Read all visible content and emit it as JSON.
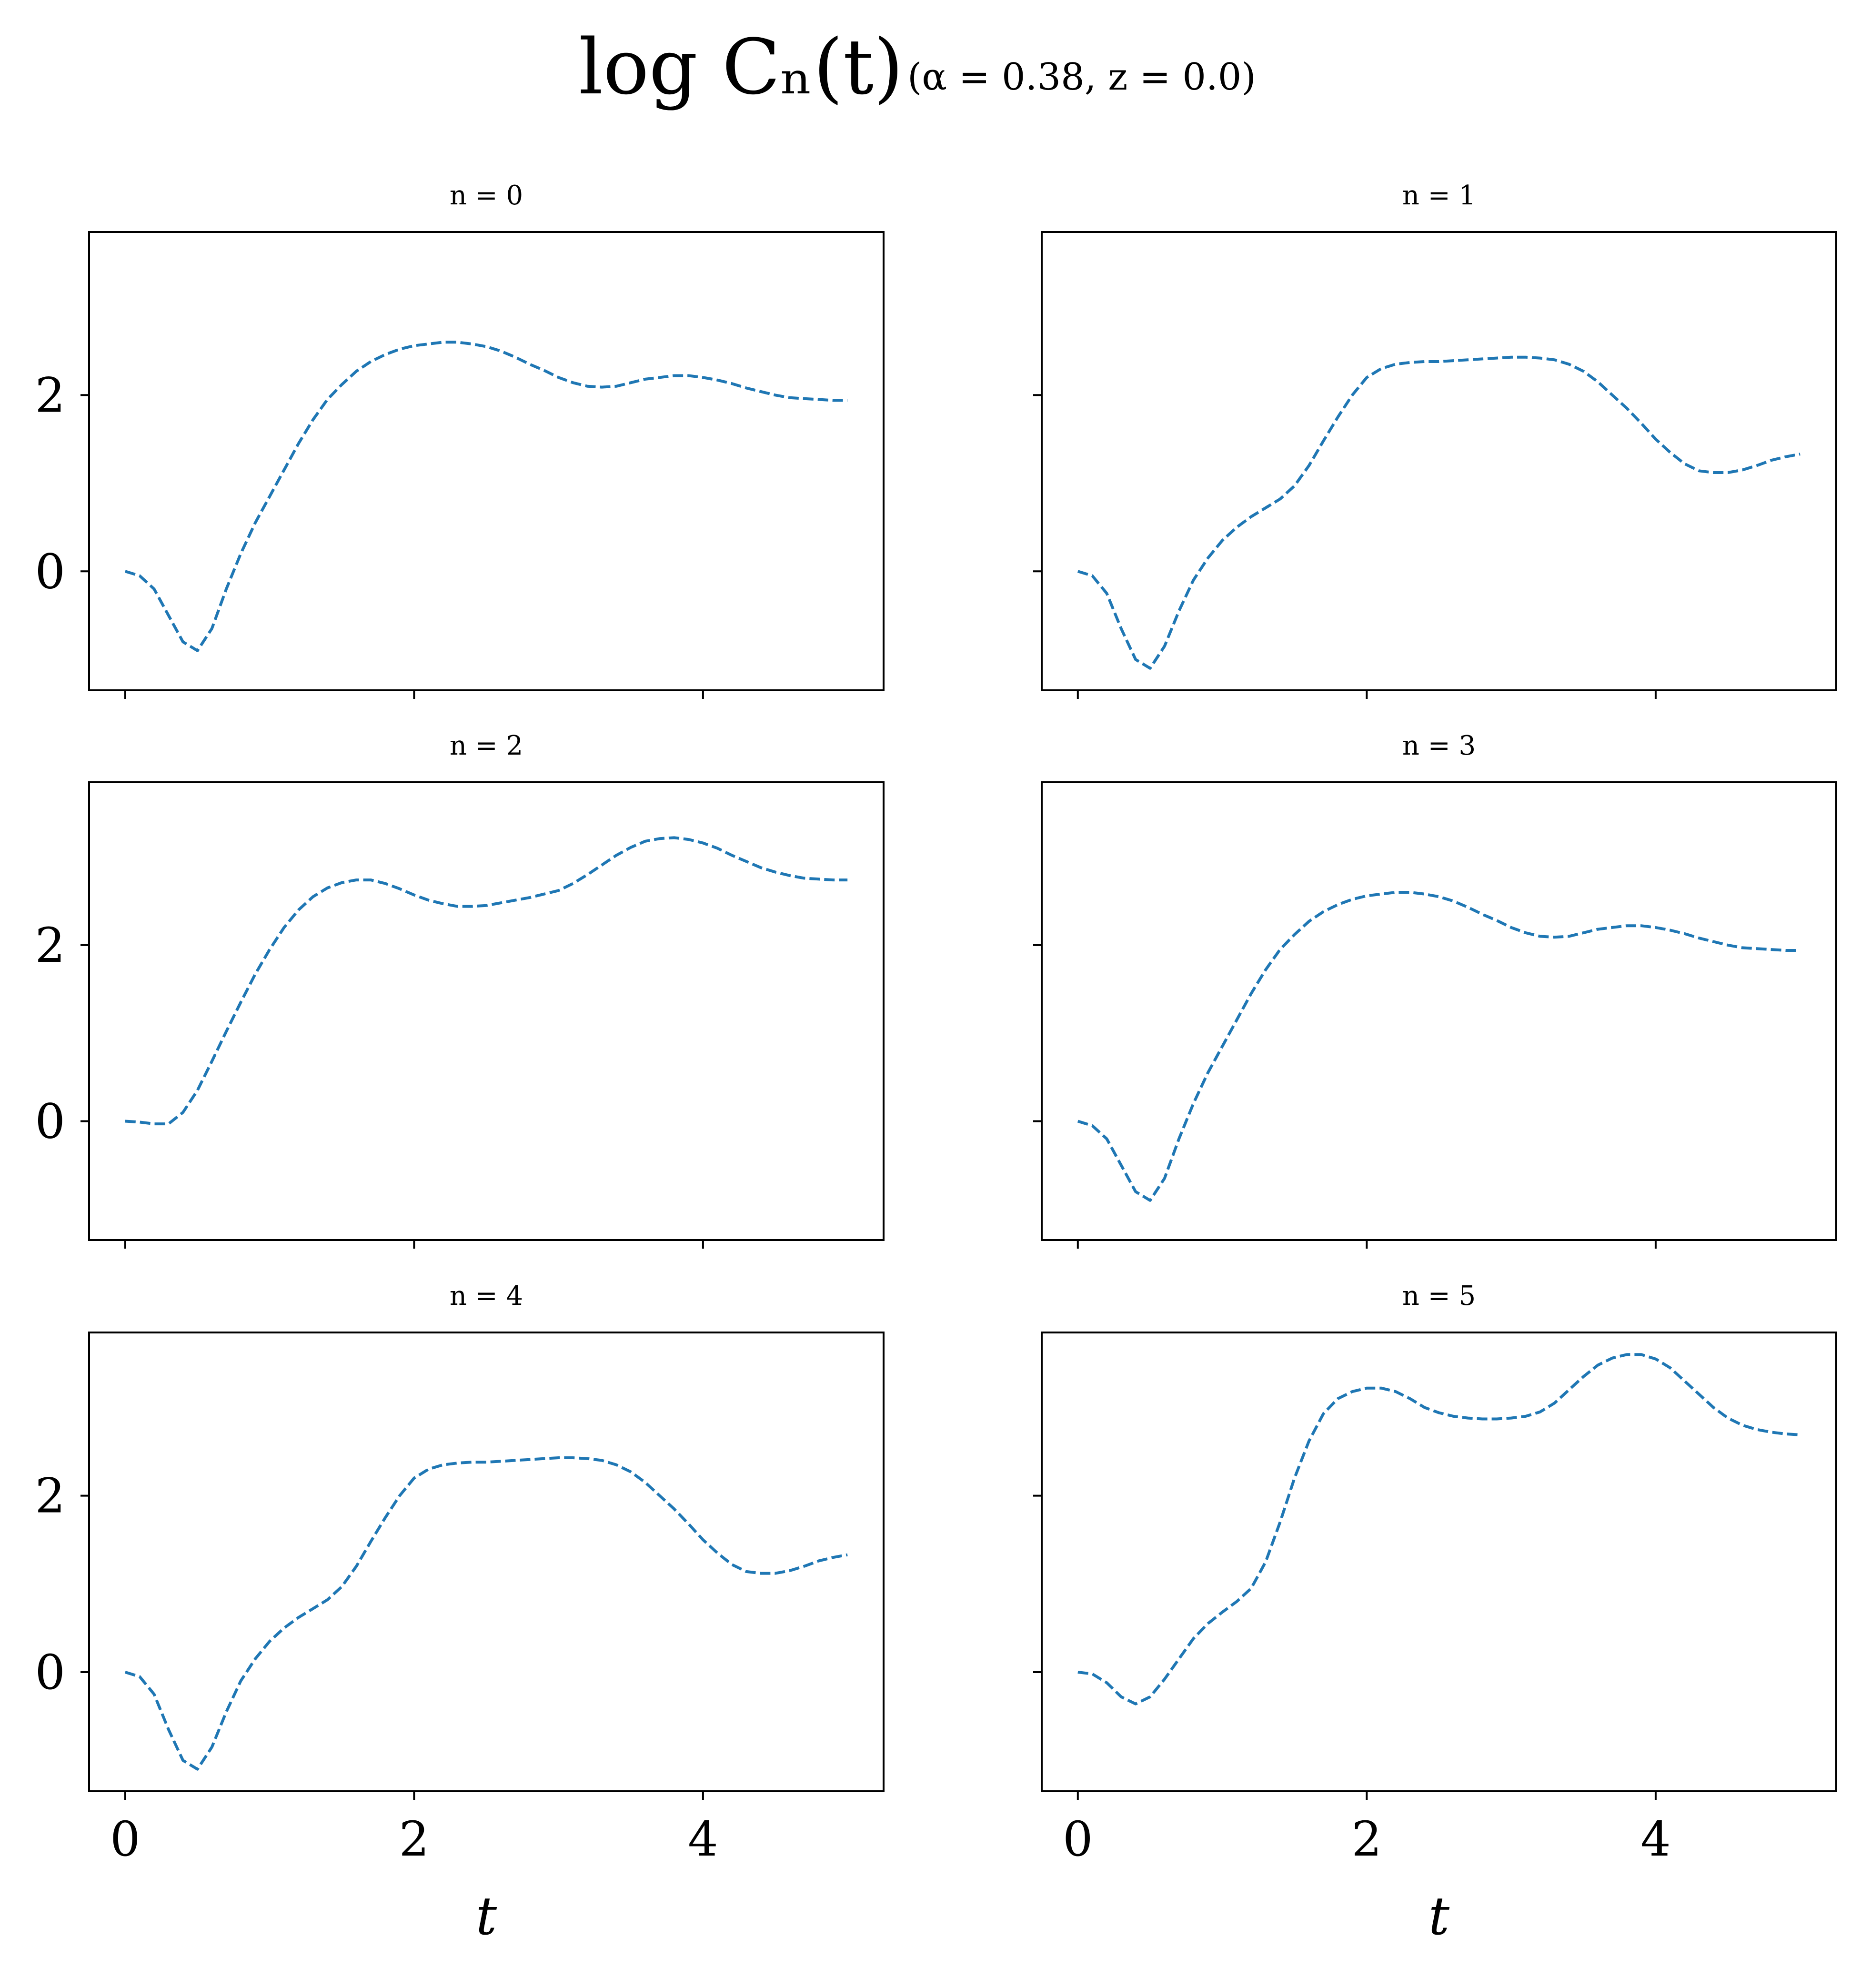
{
  "figure": {
    "suptitle_main": "log Cₙ(t)",
    "suptitle_params": "(α = 0.38, z = 0.0)"
  },
  "chart_data": [
    {
      "type": "line",
      "title": "n = 0",
      "xlabel": "",
      "ylabel": "",
      "xlim": [
        -0.25,
        5.25
      ],
      "ylim": [
        -1.35,
        3.85
      ],
      "xticks": [
        0,
        2,
        4
      ],
      "yticks": [
        0,
        2
      ],
      "line_style": "dashed",
      "line_color": "#1f77b4",
      "series": [
        {
          "x": [
            0,
            0.1,
            0.2,
            0.3,
            0.4,
            0.5,
            0.6,
            0.7,
            0.8,
            0.9,
            1.0,
            1.1,
            1.2,
            1.3,
            1.4,
            1.5,
            1.6,
            1.7,
            1.8,
            1.9,
            2.0,
            2.1,
            2.2,
            2.3,
            2.4,
            2.5,
            2.6,
            2.7,
            2.8,
            2.9,
            3.0,
            3.1,
            3.2,
            3.3,
            3.4,
            3.5,
            3.6,
            3.7,
            3.8,
            3.9,
            4.0,
            4.1,
            4.2,
            4.3,
            4.4,
            4.5,
            4.6,
            4.7,
            4.8,
            4.9,
            5.0
          ],
          "y": [
            0,
            -0.05,
            -0.2,
            -0.5,
            -0.8,
            -0.9,
            -0.65,
            -0.2,
            0.2,
            0.55,
            0.85,
            1.15,
            1.45,
            1.72,
            1.95,
            2.12,
            2.27,
            2.38,
            2.46,
            2.52,
            2.56,
            2.58,
            2.6,
            2.6,
            2.58,
            2.55,
            2.5,
            2.43,
            2.35,
            2.28,
            2.2,
            2.14,
            2.1,
            2.09,
            2.1,
            2.14,
            2.18,
            2.2,
            2.22,
            2.22,
            2.2,
            2.17,
            2.13,
            2.08,
            2.04,
            2.0,
            1.97,
            1.96,
            1.95,
            1.94,
            1.94
          ]
        }
      ]
    },
    {
      "type": "line",
      "title": "n = 1",
      "xlabel": "",
      "ylabel": "",
      "xlim": [
        -0.25,
        5.25
      ],
      "ylim": [
        -1.35,
        3.85
      ],
      "xticks": [
        0,
        2,
        4
      ],
      "yticks": [
        0,
        2
      ],
      "line_style": "dashed",
      "line_color": "#1f77b4",
      "series": [
        {
          "x": [
            0,
            0.1,
            0.2,
            0.3,
            0.4,
            0.5,
            0.6,
            0.7,
            0.8,
            0.9,
            1.0,
            1.1,
            1.2,
            1.3,
            1.4,
            1.5,
            1.6,
            1.7,
            1.8,
            1.9,
            2.0,
            2.1,
            2.2,
            2.3,
            2.4,
            2.5,
            2.6,
            2.7,
            2.8,
            2.9,
            3.0,
            3.1,
            3.2,
            3.3,
            3.4,
            3.5,
            3.6,
            3.7,
            3.8,
            3.9,
            4.0,
            4.1,
            4.2,
            4.3,
            4.4,
            4.5,
            4.6,
            4.7,
            4.8,
            4.9,
            5.0
          ],
          "y": [
            0,
            -0.05,
            -0.25,
            -0.65,
            -1.0,
            -1.1,
            -0.85,
            -0.45,
            -0.1,
            0.15,
            0.35,
            0.5,
            0.62,
            0.72,
            0.82,
            0.97,
            1.2,
            1.48,
            1.75,
            2.0,
            2.2,
            2.3,
            2.35,
            2.37,
            2.38,
            2.38,
            2.39,
            2.4,
            2.41,
            2.42,
            2.43,
            2.43,
            2.42,
            2.4,
            2.35,
            2.27,
            2.15,
            2.0,
            1.85,
            1.68,
            1.5,
            1.35,
            1.22,
            1.14,
            1.12,
            1.12,
            1.15,
            1.2,
            1.26,
            1.3,
            1.33
          ]
        }
      ]
    },
    {
      "type": "line",
      "title": "n = 2",
      "xlabel": "",
      "ylabel": "",
      "xlim": [
        -0.25,
        5.25
      ],
      "ylim": [
        -1.35,
        3.85
      ],
      "xticks": [
        0,
        2,
        4
      ],
      "yticks": [
        0,
        2
      ],
      "line_style": "dashed",
      "line_color": "#1f77b4",
      "series": [
        {
          "x": [
            0,
            0.1,
            0.2,
            0.3,
            0.4,
            0.5,
            0.6,
            0.7,
            0.8,
            0.9,
            1.0,
            1.1,
            1.2,
            1.3,
            1.4,
            1.5,
            1.6,
            1.7,
            1.8,
            1.9,
            2.0,
            2.1,
            2.2,
            2.3,
            2.4,
            2.5,
            2.6,
            2.7,
            2.8,
            2.9,
            3.0,
            3.1,
            3.2,
            3.3,
            3.4,
            3.5,
            3.6,
            3.7,
            3.8,
            3.9,
            4.0,
            4.1,
            4.2,
            4.3,
            4.4,
            4.5,
            4.6,
            4.7,
            4.8,
            4.9,
            5.0
          ],
          "y": [
            0,
            -0.01,
            -0.03,
            -0.03,
            0.1,
            0.35,
            0.68,
            1.02,
            1.35,
            1.67,
            1.95,
            2.2,
            2.4,
            2.55,
            2.65,
            2.71,
            2.74,
            2.74,
            2.7,
            2.64,
            2.57,
            2.51,
            2.47,
            2.44,
            2.44,
            2.45,
            2.48,
            2.51,
            2.54,
            2.58,
            2.62,
            2.7,
            2.8,
            2.91,
            3.02,
            3.11,
            3.18,
            3.21,
            3.22,
            3.2,
            3.16,
            3.1,
            3.02,
            2.95,
            2.88,
            2.83,
            2.79,
            2.76,
            2.75,
            2.74,
            2.74
          ]
        }
      ]
    },
    {
      "type": "line",
      "title": "n = 3",
      "xlabel": "",
      "ylabel": "",
      "xlim": [
        -0.25,
        5.25
      ],
      "ylim": [
        -1.35,
        3.85
      ],
      "xticks": [
        0,
        2,
        4
      ],
      "yticks": [
        0,
        2
      ],
      "line_style": "dashed",
      "line_color": "#1f77b4",
      "series": [
        {
          "x": [
            0,
            0.1,
            0.2,
            0.3,
            0.4,
            0.5,
            0.6,
            0.7,
            0.8,
            0.9,
            1.0,
            1.1,
            1.2,
            1.3,
            1.4,
            1.5,
            1.6,
            1.7,
            1.8,
            1.9,
            2.0,
            2.1,
            2.2,
            2.3,
            2.4,
            2.5,
            2.6,
            2.7,
            2.8,
            2.9,
            3.0,
            3.1,
            3.2,
            3.3,
            3.4,
            3.5,
            3.6,
            3.7,
            3.8,
            3.9,
            4.0,
            4.1,
            4.2,
            4.3,
            4.4,
            4.5,
            4.6,
            4.7,
            4.8,
            4.9,
            5.0
          ],
          "y": [
            0,
            -0.05,
            -0.2,
            -0.5,
            -0.8,
            -0.9,
            -0.65,
            -0.2,
            0.2,
            0.55,
            0.85,
            1.15,
            1.45,
            1.72,
            1.95,
            2.12,
            2.27,
            2.38,
            2.46,
            2.52,
            2.56,
            2.58,
            2.6,
            2.6,
            2.58,
            2.55,
            2.5,
            2.43,
            2.35,
            2.28,
            2.2,
            2.14,
            2.1,
            2.09,
            2.1,
            2.14,
            2.18,
            2.2,
            2.22,
            2.22,
            2.2,
            2.17,
            2.13,
            2.08,
            2.04,
            2.0,
            1.97,
            1.96,
            1.95,
            1.94,
            1.94
          ]
        }
      ]
    },
    {
      "type": "line",
      "title": "n = 4",
      "xlabel": "t",
      "ylabel": "",
      "xlim": [
        -0.25,
        5.25
      ],
      "ylim": [
        -1.35,
        3.85
      ],
      "xticks": [
        0,
        2,
        4
      ],
      "yticks": [
        0,
        2
      ],
      "line_style": "dashed",
      "line_color": "#1f77b4",
      "series": [
        {
          "x": [
            0,
            0.1,
            0.2,
            0.3,
            0.4,
            0.5,
            0.6,
            0.7,
            0.8,
            0.9,
            1.0,
            1.1,
            1.2,
            1.3,
            1.4,
            1.5,
            1.6,
            1.7,
            1.8,
            1.9,
            2.0,
            2.1,
            2.2,
            2.3,
            2.4,
            2.5,
            2.6,
            2.7,
            2.8,
            2.9,
            3.0,
            3.1,
            3.2,
            3.3,
            3.4,
            3.5,
            3.6,
            3.7,
            3.8,
            3.9,
            4.0,
            4.1,
            4.2,
            4.3,
            4.4,
            4.5,
            4.6,
            4.7,
            4.8,
            4.9,
            5.0
          ],
          "y": [
            0,
            -0.05,
            -0.25,
            -0.65,
            -1.0,
            -1.1,
            -0.85,
            -0.45,
            -0.1,
            0.15,
            0.35,
            0.5,
            0.62,
            0.72,
            0.82,
            0.97,
            1.2,
            1.48,
            1.75,
            2.0,
            2.2,
            2.3,
            2.35,
            2.37,
            2.38,
            2.38,
            2.39,
            2.4,
            2.41,
            2.42,
            2.43,
            2.43,
            2.42,
            2.4,
            2.35,
            2.27,
            2.15,
            2.0,
            1.85,
            1.68,
            1.5,
            1.35,
            1.22,
            1.14,
            1.12,
            1.12,
            1.15,
            1.2,
            1.26,
            1.3,
            1.33
          ]
        }
      ]
    },
    {
      "type": "line",
      "title": "n = 5",
      "xlabel": "t",
      "ylabel": "",
      "xlim": [
        -0.25,
        5.25
      ],
      "ylim": [
        -1.35,
        3.85
      ],
      "xticks": [
        0,
        2,
        4
      ],
      "yticks": [
        0,
        2
      ],
      "line_style": "dashed",
      "line_color": "#1f77b4",
      "series": [
        {
          "x": [
            0,
            0.1,
            0.2,
            0.3,
            0.4,
            0.5,
            0.6,
            0.7,
            0.8,
            0.9,
            1.0,
            1.1,
            1.2,
            1.3,
            1.4,
            1.5,
            1.6,
            1.7,
            1.8,
            1.9,
            2.0,
            2.1,
            2.2,
            2.3,
            2.4,
            2.5,
            2.6,
            2.7,
            2.8,
            2.9,
            3.0,
            3.1,
            3.2,
            3.3,
            3.4,
            3.5,
            3.6,
            3.7,
            3.8,
            3.9,
            4.0,
            4.1,
            4.2,
            4.3,
            4.4,
            4.5,
            4.6,
            4.7,
            4.8,
            4.9,
            5.0
          ],
          "y": [
            0,
            -0.02,
            -0.12,
            -0.28,
            -0.36,
            -0.28,
            -0.08,
            0.15,
            0.38,
            0.55,
            0.68,
            0.8,
            0.95,
            1.25,
            1.7,
            2.2,
            2.62,
            2.93,
            3.1,
            3.18,
            3.22,
            3.22,
            3.18,
            3.1,
            3.0,
            2.94,
            2.9,
            2.88,
            2.87,
            2.87,
            2.88,
            2.9,
            2.95,
            3.05,
            3.2,
            3.35,
            3.48,
            3.56,
            3.6,
            3.6,
            3.55,
            3.45,
            3.3,
            3.15,
            3.0,
            2.88,
            2.8,
            2.75,
            2.72,
            2.7,
            2.69
          ]
        }
      ]
    }
  ]
}
